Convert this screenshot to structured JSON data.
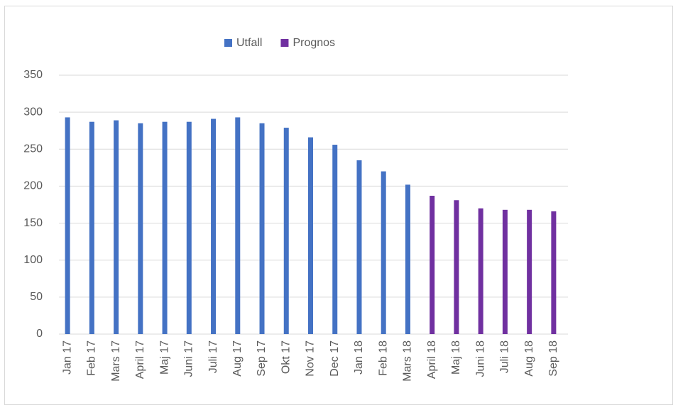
{
  "chart_data": {
    "type": "bar",
    "categories": [
      "Jan 17",
      "Feb 17",
      "Mars 17",
      "April 17",
      "Maj 17",
      "Juni 17",
      "Juli 17",
      "Aug 17",
      "Sep 17",
      "Okt 17",
      "Nov 17",
      "Dec 17",
      "Jan 18",
      "Feb 18",
      "Mars 18",
      "April 18",
      "Maj 18",
      "Juni 18",
      "Juli 18",
      "Aug 18",
      "Sep 18"
    ],
    "series": [
      {
        "name": "Utfall",
        "color": "#4472c4",
        "values": [
          293,
          287,
          289,
          285,
          287,
          287,
          291,
          293,
          285,
          279,
          266,
          256,
          235,
          220,
          202,
          null,
          null,
          null,
          null,
          null,
          null
        ]
      },
      {
        "name": "Prognos",
        "color": "#7030a0",
        "values": [
          null,
          null,
          null,
          null,
          null,
          null,
          null,
          null,
          null,
          null,
          null,
          null,
          null,
          null,
          null,
          187,
          181,
          170,
          168,
          168,
          166
        ]
      }
    ],
    "ylim": [
      0,
      350
    ],
    "yticks": [
      0,
      50,
      100,
      150,
      200,
      250,
      300,
      350
    ],
    "grid": true,
    "legend": "top"
  }
}
